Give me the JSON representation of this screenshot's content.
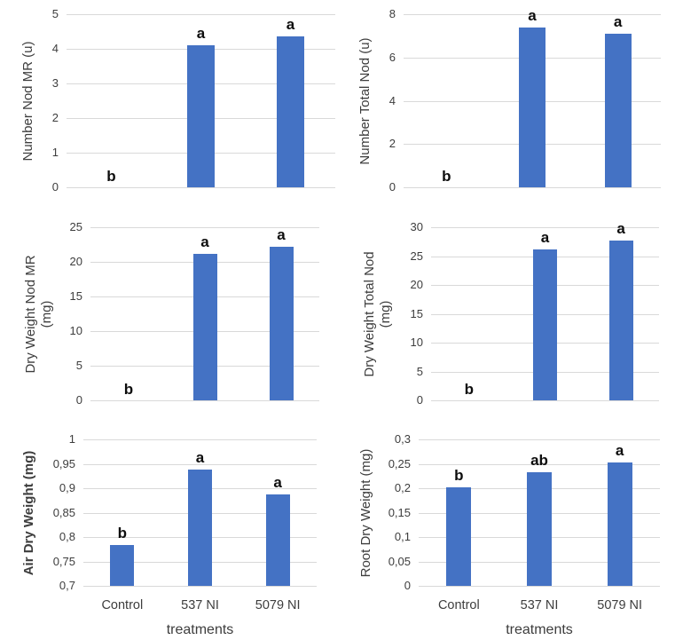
{
  "figure": {
    "bar_color": "#4472C4",
    "gridline_color": "#D9D9D9",
    "text_color": "#3d3d3d",
    "letter_color": "#0d0d0d",
    "categories": [
      "Control",
      "537 NI",
      "5079 NI"
    ],
    "x_axis_title": "treatments"
  },
  "chart_data": [
    {
      "type": "bar",
      "ylabel": "Number Nod MR (u)",
      "ylabel_bold": false,
      "categories": [
        "Control",
        "537 NI",
        "5079 NI"
      ],
      "values": [
        0,
        4.1,
        4.35
      ],
      "letters": [
        "b",
        "a",
        "a"
      ],
      "ylim": [
        0,
        5
      ],
      "yticks": [
        0,
        1,
        2,
        3,
        4,
        5
      ],
      "ytick_labels": [
        "0",
        "1",
        "2",
        "3",
        "4",
        "5"
      ],
      "grid": true,
      "show_x_tick_labels": false,
      "xlabel": ""
    },
    {
      "type": "bar",
      "ylabel": "Number Total Nod (u)",
      "ylabel_bold": false,
      "categories": [
        "Control",
        "537 NI",
        "5079 NI"
      ],
      "values": [
        0,
        7.4,
        7.1
      ],
      "letters": [
        "b",
        "a",
        "a"
      ],
      "ylim": [
        0,
        8
      ],
      "yticks": [
        0,
        2,
        4,
        6,
        8
      ],
      "ytick_labels": [
        "0",
        "2",
        "4",
        "6",
        "8"
      ],
      "grid": true,
      "show_x_tick_labels": false,
      "xlabel": ""
    },
    {
      "type": "bar",
      "ylabel": "Dry Weight Nod MR\n(mg)",
      "ylabel_bold": false,
      "categories": [
        "Control",
        "537 NI",
        "5079 NI"
      ],
      "values": [
        0,
        21.1,
        22.2
      ],
      "letters": [
        "b",
        "a",
        "a"
      ],
      "ylim": [
        0,
        25
      ],
      "yticks": [
        0,
        5,
        10,
        15,
        20,
        25
      ],
      "ytick_labels": [
        "0",
        "5",
        "10",
        "15",
        "20",
        "25"
      ],
      "grid": true,
      "show_x_tick_labels": false,
      "xlabel": ""
    },
    {
      "type": "bar",
      "ylabel": "Dry Weight Total Nod\n(mg)",
      "ylabel_bold": false,
      "categories": [
        "Control",
        "537 NI",
        "5079 NI"
      ],
      "values": [
        0,
        26.1,
        27.7
      ],
      "letters": [
        "b",
        "a",
        "a"
      ],
      "ylim": [
        0,
        30
      ],
      "yticks": [
        0,
        5,
        10,
        15,
        20,
        25,
        30
      ],
      "ytick_labels": [
        "0",
        "5",
        "10",
        "15",
        "20",
        "25",
        "30"
      ],
      "grid": true,
      "show_x_tick_labels": false,
      "xlabel": ""
    },
    {
      "type": "bar",
      "ylabel": "Air Dry Weight (mg)",
      "ylabel_bold": true,
      "categories": [
        "Control",
        "537 NI",
        "5079 NI"
      ],
      "values": [
        0.783,
        0.938,
        0.887
      ],
      "letters": [
        "b",
        "a",
        "a"
      ],
      "ylim": [
        0.7,
        1.0
      ],
      "yticks": [
        0.7,
        0.75,
        0.8,
        0.85,
        0.9,
        0.95,
        1.0
      ],
      "ytick_labels": [
        "0,7",
        "0,75",
        "0,8",
        "0,85",
        "0,9",
        "0,95",
        "1"
      ],
      "grid": true,
      "show_x_tick_labels": true,
      "xlabel": "treatments"
    },
    {
      "type": "bar",
      "ylabel": "Root Dry Weight (mg)",
      "ylabel_bold": false,
      "categories": [
        "Control",
        "537 NI",
        "5079 NI"
      ],
      "values": [
        0.202,
        0.232,
        0.252
      ],
      "letters": [
        "b",
        "ab",
        "a"
      ],
      "ylim": [
        0,
        0.3
      ],
      "yticks": [
        0,
        0.05,
        0.1,
        0.15,
        0.2,
        0.25,
        0.3
      ],
      "ytick_labels": [
        "0",
        "0,05",
        "0,1",
        "0,15",
        "0,2",
        "0,25",
        "0,3"
      ],
      "grid": true,
      "show_x_tick_labels": true,
      "xlabel": "treatments"
    }
  ]
}
